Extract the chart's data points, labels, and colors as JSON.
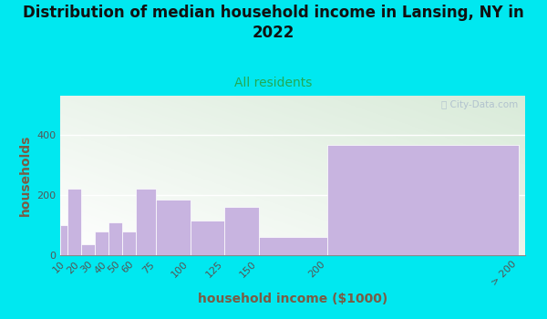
{
  "title": "Distribution of median household income in Lansing, NY in\n2022",
  "subtitle": "All residents",
  "xlabel": "household income ($1000)",
  "ylabel": "households",
  "categories": [
    "10",
    "20",
    "30",
    "40",
    "50",
    "60",
    "75",
    "100",
    "125",
    "150",
    "200",
    "> 200"
  ],
  "values": [
    100,
    220,
    35,
    80,
    110,
    80,
    220,
    185,
    115,
    160,
    60,
    365
  ],
  "bar_color": "#c8b4e0",
  "yticks": [
    0,
    200,
    400
  ],
  "ylim": [
    0,
    530
  ],
  "background_outer": "#00e8f0",
  "bg_colors": [
    "#ddeedd",
    "#f5f8f4"
  ],
  "title_fontsize": 12,
  "title_color": "#111111",
  "subtitle_color": "#22aa55",
  "subtitle_fontsize": 10,
  "axis_label_color": "#7a5c44",
  "axis_label_fontsize": 10,
  "tick_label_fontsize": 8,
  "tick_label_color": "#555555",
  "watermark": "ⓘ City-Data.com",
  "watermark_color": "#aabbcc",
  "left_edges": [
    5,
    10,
    20,
    30,
    40,
    50,
    60,
    75,
    100,
    125,
    150,
    200
  ],
  "right_edges": [
    10,
    20,
    30,
    40,
    50,
    60,
    75,
    100,
    125,
    150,
    200,
    340
  ]
}
